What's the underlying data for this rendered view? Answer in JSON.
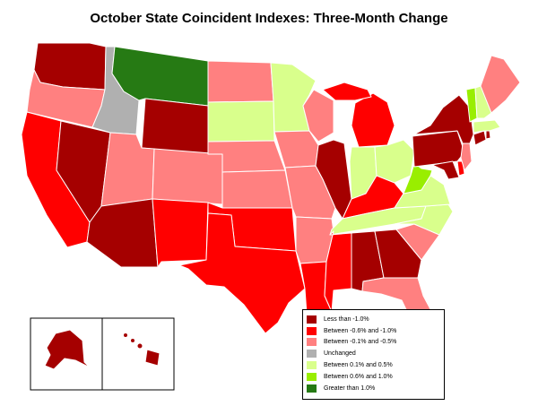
{
  "title": "October State Coincident Indexes: Three-Month Change",
  "colors": {
    "lt_m1": "#a50000",
    "m06_m10": "#ff0000",
    "m01_m05": "#ff8080",
    "unchanged": "#b0b0b0",
    "p01_p05": "#d9ff8c",
    "p06_p10": "#99ee00",
    "gt_p10": "#267a14"
  },
  "legend": [
    {
      "label": "Less than -1.0%",
      "color": "#a50000"
    },
    {
      "label": "Between -0.6% and -1.0%",
      "color": "#ff0000"
    },
    {
      "label": "Between -0.1% and -0.5%",
      "color": "#ff8080"
    },
    {
      "label": "Unchanged",
      "color": "#b0b0b0"
    },
    {
      "label": "Between 0.1% and 0.5%",
      "color": "#d9ff8c"
    },
    {
      "label": "Between 0.6% and 1.0%",
      "color": "#99ee00"
    },
    {
      "label": "Greater than 1.0%",
      "color": "#267a14"
    }
  ],
  "states": {
    "WA": "lt_m1",
    "OR": "m01_m05",
    "CA": "m06_m10",
    "NV": "lt_m1",
    "ID": "unchanged",
    "MT": "gt_p10",
    "WY": "lt_m1",
    "UT": "m01_m05",
    "AZ": "lt_m1",
    "CO": "m01_m05",
    "NM": "m06_m10",
    "ND": "m01_m05",
    "SD": "p01_p05",
    "NE": "m01_m05",
    "KS": "m01_m05",
    "OK": "m06_m10",
    "TX": "m06_m10",
    "MN": "p01_p05",
    "IA": "m01_m05",
    "MO": "m01_m05",
    "AR": "m01_m05",
    "LA": "m06_m10",
    "WI": "m01_m05",
    "IL": "lt_m1",
    "MI": "m06_m10",
    "IN": "p01_p05",
    "OH": "p01_p05",
    "KY": "m06_m10",
    "TN": "p01_p05",
    "MS": "m06_m10",
    "AL": "lt_m1",
    "GA": "lt_m1",
    "FL": "m01_m05",
    "SC": "m01_m05",
    "NC": "p01_p05",
    "VA": "p01_p05",
    "WV": "p06_p10",
    "PA": "lt_m1",
    "NY": "lt_m1",
    "VT": "p06_p10",
    "NH": "p01_p05",
    "ME": "m01_m05",
    "MA": "p01_p05",
    "CT": "lt_m1",
    "RI": "lt_m1",
    "NJ": "m01_m05",
    "DE": "m06_m10",
    "MD": "lt_m1",
    "AK": "lt_m1",
    "HI": "lt_m1"
  }
}
